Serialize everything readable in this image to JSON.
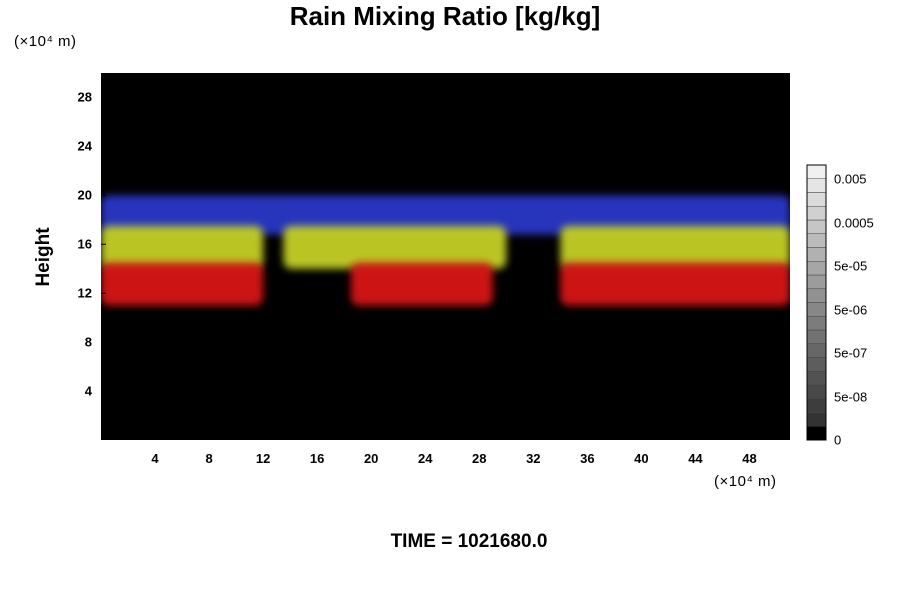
{
  "chart_data": {
    "type": "heatmap",
    "title": "Rain Mixing Ratio [kg/kg]",
    "xlabel": "",
    "ylabel": "Height",
    "x_unit_label": "(×10⁴ m)",
    "y_unit_label": "(×10⁴ m)",
    "xlim": [
      0,
      51
    ],
    "ylim": [
      0,
      30
    ],
    "x_ticks": [
      4,
      8,
      12,
      16,
      20,
      24,
      28,
      32,
      36,
      40,
      44,
      48
    ],
    "y_ticks": [
      4,
      8,
      12,
      16,
      20,
      24,
      28
    ],
    "background_color": "#000000",
    "bands": [
      {
        "color": "#2a38c8",
        "y_bottom": 16.8,
        "y_top": 20.0,
        "segments": [
          [
            0,
            51
          ]
        ]
      },
      {
        "color": "#c4d028",
        "y_bottom": 14.0,
        "y_top": 17.5,
        "segments": [
          [
            0,
            12
          ],
          [
            13.5,
            30
          ],
          [
            34,
            51
          ]
        ]
      },
      {
        "color": "#d81818",
        "y_bottom": 11.0,
        "y_top": 14.5,
        "segments": [
          [
            0,
            12
          ],
          [
            18.5,
            29
          ],
          [
            34,
            51
          ]
        ]
      }
    ],
    "colorbar": {
      "tick_labels": [
        "0.005",
        "0.0005",
        "5e-05",
        "5e-06",
        "5e-07",
        "5e-08",
        "0"
      ]
    }
  },
  "footer": {
    "time_label": "TIME = 1021680.0"
  }
}
